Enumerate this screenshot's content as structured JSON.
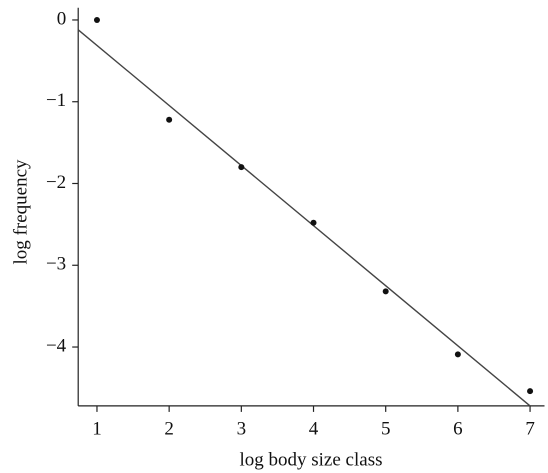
{
  "chart_data": {
    "type": "scatter",
    "x_label": "log body size class",
    "y_label": "log frequency",
    "x": [
      1,
      2,
      3,
      4,
      5,
      6,
      7
    ],
    "values": [
      0,
      -1.22,
      -1.8,
      -2.48,
      -3.32,
      -4.09,
      -4.54
    ],
    "color": "#111111",
    "fit_line": {
      "x": [
        0.74,
        7
      ],
      "y": [
        -0.12,
        -4.72
      ],
      "color": "#444444"
    },
    "xlim": [
      0.74,
      7.2
    ],
    "ylim": [
      -4.72,
      0.15
    ],
    "xticks": [
      1,
      2,
      3,
      4,
      5,
      6,
      7
    ],
    "yticks": [
      0,
      {
        "value": -1,
        "label": "−1"
      },
      {
        "value": -2,
        "label": "−2"
      },
      {
        "value": -3,
        "label": "−3"
      },
      {
        "value": -4,
        "label": "−4"
      }
    ],
    "grid": false
  }
}
